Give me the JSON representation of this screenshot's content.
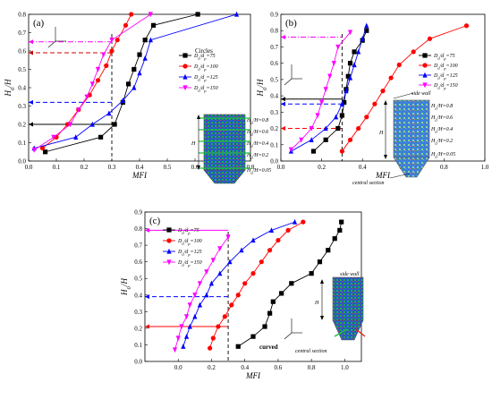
{
  "chart_data": [
    {
      "type": "line",
      "panel_label": "(a)",
      "xlabel": "MFI",
      "ylabel": "H_0/H",
      "xlim": [
        0.0,
        0.8
      ],
      "ylim": [
        0.0,
        0.8
      ],
      "xticks": [
        "0.0",
        "0.1",
        "0.2",
        "0.3",
        "0.4",
        "0.5",
        "0.6",
        "0.7",
        "0.8"
      ],
      "yticks": [
        "0.0",
        "0.1",
        "0.2",
        "0.3",
        "0.4",
        "0.5",
        "0.6",
        "0.7",
        "0.8"
      ],
      "annotation": "Circles",
      "legend_position": "right",
      "series": [
        {
          "name": "D_0/d_p=75",
          "color": "#000000",
          "marker": "square",
          "x": [
            0.06,
            0.26,
            0.31,
            0.34,
            0.36,
            0.38,
            0.4,
            0.42,
            0.45,
            0.61
          ],
          "y": [
            0.05,
            0.13,
            0.2,
            0.32,
            0.42,
            0.5,
            0.58,
            0.66,
            0.74,
            0.8
          ]
        },
        {
          "name": "D_0/d_p=100",
          "color": "#ff0000",
          "marker": "circle",
          "x": [
            0.05,
            0.1,
            0.14,
            0.18,
            0.22,
            0.25,
            0.28,
            0.3,
            0.32,
            0.35,
            0.37
          ],
          "y": [
            0.07,
            0.13,
            0.2,
            0.28,
            0.36,
            0.44,
            0.52,
            0.6,
            0.66,
            0.74,
            0.8
          ]
        },
        {
          "name": "D_0/d_p=125",
          "color": "#0000ff",
          "marker": "triangle",
          "x": [
            0.02,
            0.17,
            0.23,
            0.29,
            0.34,
            0.38,
            0.4,
            0.42,
            0.44,
            0.75
          ],
          "y": [
            0.07,
            0.13,
            0.2,
            0.26,
            0.33,
            0.4,
            0.48,
            0.56,
            0.66,
            0.8
          ]
        },
        {
          "name": "D_0/d_p=150",
          "color": "#ff00ff",
          "marker": "triangle-down",
          "x": [
            0.02,
            0.09,
            0.15,
            0.18,
            0.21,
            0.23,
            0.25,
            0.27,
            0.3,
            0.44
          ],
          "y": [
            0.06,
            0.13,
            0.2,
            0.28,
            0.35,
            0.42,
            0.5,
            0.58,
            0.66,
            0.8
          ]
        }
      ],
      "guide_lines": [
        {
          "y": 0.65,
          "color": "#ff00ff",
          "style": "dashdot"
        },
        {
          "y": 0.59,
          "color": "#cc0000",
          "style": "dash"
        },
        {
          "y": 0.32,
          "color": "#0000ff",
          "style": "dash"
        },
        {
          "y": 0.2,
          "color": "#000000",
          "style": "solid"
        }
      ],
      "vline_x": 0.3,
      "inset_labels": [
        "H",
        "H_0/H=0.8",
        "H_0/H=0.6",
        "H_0/H=0.4",
        "H_0/H=0.2",
        "H_0/H=0.05"
      ]
    },
    {
      "type": "line",
      "panel_label": "(b)",
      "xlabel": "MFI",
      "ylabel": "H_0/H",
      "xlim": [
        0.0,
        1.0
      ],
      "ylim": [
        0.0,
        0.9
      ],
      "xticks": [
        "0.0",
        "0.2",
        "0.4",
        "0.6",
        "0.8",
        "1.0"
      ],
      "yticks": [
        "0.0",
        "0.1",
        "0.2",
        "0.3",
        "0.4",
        "0.5",
        "0.6",
        "0.7",
        "0.8",
        "0.9"
      ],
      "legend_position": "right",
      "series": [
        {
          "name": "D_0/d_p=75",
          "color": "#000000",
          "marker": "square",
          "x": [
            0.16,
            0.22,
            0.28,
            0.3,
            0.31,
            0.32,
            0.33,
            0.34,
            0.36,
            0.4,
            0.42
          ],
          "y": [
            0.06,
            0.13,
            0.2,
            0.28,
            0.36,
            0.44,
            0.52,
            0.6,
            0.67,
            0.74,
            0.8
          ]
        },
        {
          "name": "D_0/d_p=100",
          "color": "#ff0000",
          "marker": "circle",
          "x": [
            0.3,
            0.34,
            0.38,
            0.42,
            0.46,
            0.5,
            0.54,
            0.58,
            0.65,
            0.73,
            0.91
          ],
          "y": [
            0.06,
            0.13,
            0.2,
            0.27,
            0.35,
            0.43,
            0.51,
            0.59,
            0.67,
            0.75,
            0.83
          ]
        },
        {
          "name": "D_0/d_p=125",
          "color": "#0000ff",
          "marker": "triangle",
          "x": [
            0.05,
            0.15,
            0.22,
            0.27,
            0.3,
            0.32,
            0.34,
            0.36,
            0.38,
            0.4,
            0.42
          ],
          "y": [
            0.06,
            0.13,
            0.2,
            0.27,
            0.35,
            0.43,
            0.51,
            0.59,
            0.67,
            0.75,
            0.83
          ]
        },
        {
          "name": "D_0/d_p=150",
          "color": "#ff00ff",
          "marker": "triangle-down",
          "x": [
            0.05,
            0.1,
            0.15,
            0.18,
            0.2,
            0.22,
            0.24,
            0.26,
            0.28,
            0.34
          ],
          "y": [
            0.07,
            0.13,
            0.2,
            0.28,
            0.36,
            0.44,
            0.52,
            0.6,
            0.7,
            0.79
          ]
        }
      ],
      "guide_lines": [
        {
          "y": 0.76,
          "color": "#ff00ff",
          "style": "dashdot"
        },
        {
          "y": 0.38,
          "color": "#000000",
          "style": "solid"
        },
        {
          "y": 0.35,
          "color": "#0000ff",
          "style": "dash"
        },
        {
          "y": 0.2,
          "color": "#ff0000",
          "style": "dash"
        }
      ],
      "vline_x": 0.3,
      "inset_labels": [
        "side wall",
        "H",
        "H_0/H=0.8",
        "H_0/H=0.6",
        "H_0/H=0.4",
        "H_0/H=0.2",
        "H_0/H=0.05",
        "central section"
      ]
    },
    {
      "type": "line",
      "panel_label": "(c)",
      "xlabel": "MFI",
      "ylabel": "H_0/H",
      "xlim": [
        -0.2,
        1.1
      ],
      "ylim": [
        0.0,
        0.9
      ],
      "xticks": [
        "0.0",
        "0.2",
        "0.4",
        "0.6",
        "0.8",
        "1.0"
      ],
      "yticks": [
        "0.0",
        "0.1",
        "0.2",
        "0.3",
        "0.4",
        "0.5",
        "0.6",
        "0.7",
        "0.8",
        "0.9"
      ],
      "annotation": "curved",
      "legend_position": "top-left",
      "series": [
        {
          "name": "D_0/d_p=75",
          "color": "#000000",
          "marker": "square",
          "x": [
            0.36,
            0.45,
            0.52,
            0.55,
            0.57,
            0.62,
            0.68,
            0.8,
            0.85,
            0.9,
            0.94,
            0.97,
            0.98
          ],
          "y": [
            0.09,
            0.15,
            0.21,
            0.29,
            0.36,
            0.41,
            0.47,
            0.53,
            0.6,
            0.67,
            0.74,
            0.79,
            0.84
          ]
        },
        {
          "name": "D_0/d_p=100",
          "color": "#ff0000",
          "marker": "circle",
          "x": [
            0.19,
            0.21,
            0.24,
            0.28,
            0.32,
            0.36,
            0.4,
            0.45,
            0.5,
            0.55,
            0.6,
            0.66,
            0.75
          ],
          "y": [
            0.08,
            0.14,
            0.21,
            0.27,
            0.34,
            0.4,
            0.47,
            0.53,
            0.6,
            0.67,
            0.73,
            0.79,
            0.84
          ]
        },
        {
          "name": "D_0/d_p=125",
          "color": "#0000ff",
          "marker": "triangle",
          "x": [
            0.03,
            0.05,
            0.07,
            0.1,
            0.13,
            0.17,
            0.2,
            0.25,
            0.31,
            0.38,
            0.45,
            0.56,
            0.7
          ],
          "y": [
            0.09,
            0.15,
            0.21,
            0.27,
            0.34,
            0.4,
            0.47,
            0.53,
            0.6,
            0.67,
            0.73,
            0.79,
            0.84
          ]
        },
        {
          "name": "D_0/d_p=150",
          "color": "#ff00ff",
          "marker": "triangle-down",
          "x": [
            -0.02,
            0.0,
            0.02,
            0.05,
            0.07,
            0.1,
            0.13,
            0.17,
            0.21,
            0.25,
            0.3
          ],
          "y": [
            0.07,
            0.14,
            0.21,
            0.27,
            0.34,
            0.4,
            0.47,
            0.54,
            0.61,
            0.68,
            0.75
          ]
        }
      ],
      "guide_lines": [
        {
          "y": 0.79,
          "color": "#ff00ff",
          "style": "solid"
        },
        {
          "y": 0.39,
          "color": "#0000ff",
          "style": "dash"
        },
        {
          "y": 0.21,
          "color": "#ff0000",
          "style": "solid"
        }
      ],
      "vline_x": 0.3,
      "inset_labels": [
        "side wall",
        "H",
        "central section"
      ]
    }
  ]
}
